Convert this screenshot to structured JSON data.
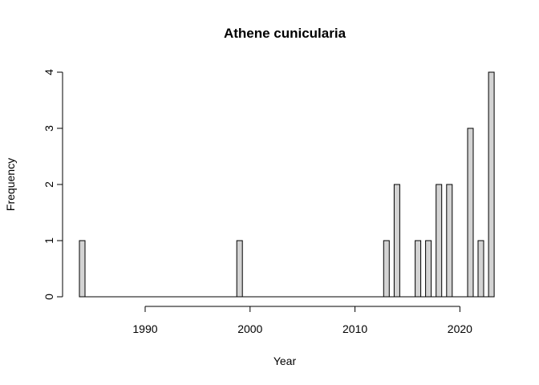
{
  "chart_data": {
    "type": "bar",
    "title": "Athene cunicularia",
    "xlabel": "Year",
    "ylabel": "Frequency",
    "x": [
      1984,
      1985,
      1986,
      1987,
      1988,
      1989,
      1990,
      1991,
      1992,
      1993,
      1994,
      1995,
      1996,
      1997,
      1998,
      1999,
      2000,
      2001,
      2002,
      2003,
      2004,
      2005,
      2006,
      2007,
      2008,
      2009,
      2010,
      2011,
      2012,
      2013,
      2014,
      2015,
      2016,
      2017,
      2018,
      2019,
      2020,
      2021,
      2022,
      2023
    ],
    "values": [
      1,
      0,
      0,
      0,
      0,
      0,
      0,
      0,
      0,
      0,
      0,
      0,
      0,
      0,
      0,
      1,
      0,
      0,
      0,
      0,
      0,
      0,
      0,
      0,
      0,
      0,
      0,
      0,
      0,
      1,
      2,
      0,
      1,
      1,
      2,
      2,
      0,
      3,
      1,
      4
    ],
    "ylim": [
      0,
      4
    ],
    "xlim": [
      1984,
      2023
    ],
    "xticks": [
      1990,
      2000,
      2010,
      2020
    ],
    "yticks": [
      0,
      1,
      2,
      3,
      4
    ],
    "bar_color": "#d3d3d3",
    "grid": false,
    "legend": "none"
  }
}
